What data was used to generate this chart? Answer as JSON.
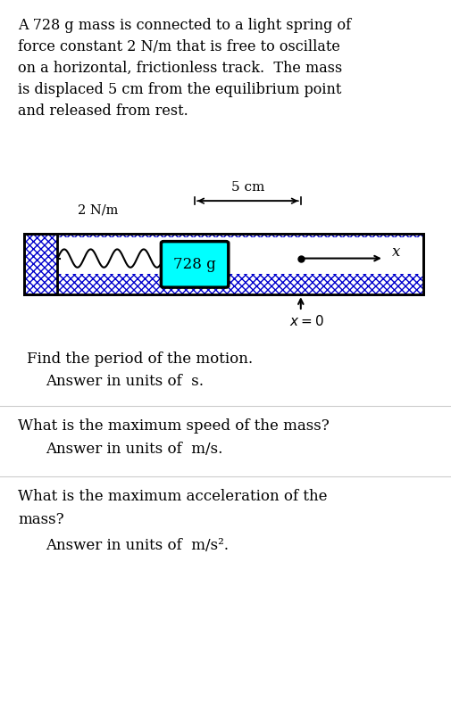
{
  "bg_color": "#ffffff",
  "text_color": "#000000",
  "paragraph1": "A 728 g mass is connected to a light spring of\nforce constant 2 N/m that is free to oscillate\non a horizontal, frictionless track.  The mass\nis displaced 5 cm from the equilibrium point\nand released from rest.",
  "spring_label": "2 N/m",
  "mass_label": "728 g",
  "displacement_label": "5 cm",
  "x_label": "x",
  "x0_label": "x = 0",
  "q1_line1": "Find the period of the motion.",
  "q1_line2": "Answer in units of  s.",
  "q2_line1": "What is the maximum speed of the mass?",
  "q2_line2": "Answer in units of  m/s.",
  "q3_line1": "What is the maximum acceleration of the",
  "q3_line2": "mass?",
  "q3_line3": "Answer in units of  m/s².",
  "track_hatch_color": "#0000cc",
  "track_fill": "#ffffff",
  "mass_fill": "#00ffff",
  "mass_border": "#000000",
  "wall_hatch_color": "#0000cc",
  "divider_color": "#cccccc"
}
